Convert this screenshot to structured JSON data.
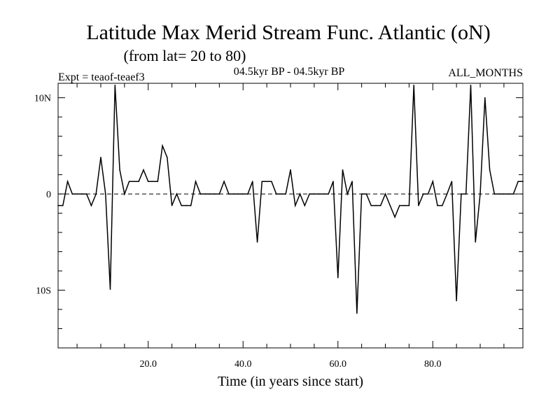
{
  "chart_data": {
    "type": "line",
    "title": "Latitude Max Merid Stream Func. Atlantic (oN)",
    "subtitle": "(from lat= 20 to 80)",
    "experiment": "Expt = teaof-teaef3",
    "period": "04.5kyr BP - 04.5kyr BP",
    "season": "ALL_MONTHS",
    "xlabel": "Time (in years since start)",
    "ylabel": "",
    "xlim": [
      1,
      99
    ],
    "ylim": [
      -16,
      11.5
    ],
    "x_ticks": [
      20,
      40,
      60,
      80
    ],
    "x_tick_labels": [
      "20.0",
      "40.0",
      "60.0",
      "80.0"
    ],
    "y_ticks": [
      10,
      0,
      -10
    ],
    "y_tick_labels": [
      "10N",
      "0",
      "10S"
    ],
    "zero_line": "dashed",
    "grid": false,
    "series": [
      {
        "name": "Latitude Max Merid Stream Func.",
        "x": [
          1,
          2,
          3,
          4,
          5,
          6,
          7,
          8,
          9,
          10,
          11,
          12,
          13,
          14,
          15,
          16,
          17,
          18,
          19,
          20,
          21,
          22,
          23,
          24,
          25,
          26,
          27,
          28,
          29,
          30,
          31,
          32,
          33,
          34,
          35,
          36,
          37,
          38,
          39,
          40,
          41,
          42,
          43,
          44,
          45,
          46,
          47,
          48,
          49,
          50,
          51,
          52,
          53,
          54,
          55,
          56,
          57,
          58,
          59,
          60,
          61,
          62,
          63,
          64,
          65,
          66,
          67,
          68,
          69,
          70,
          71,
          72,
          73,
          74,
          75,
          76,
          77,
          78,
          79,
          80,
          81,
          82,
          83,
          84,
          85,
          86,
          87,
          88,
          89,
          90,
          91,
          92,
          93,
          94,
          95,
          96,
          97,
          98,
          99
        ],
        "values": [
          -1.2,
          -1.2,
          1.3,
          0,
          0,
          0,
          0,
          -1.2,
          0,
          3.8,
          0,
          -9.9,
          11.3,
          2.5,
          0,
          1.3,
          1.3,
          1.3,
          2.5,
          1.3,
          1.3,
          1.3,
          5.0,
          3.8,
          -1.2,
          0,
          -1.2,
          -1.2,
          -1.2,
          1.3,
          0,
          0,
          0,
          0,
          0,
          1.3,
          0,
          0,
          0,
          0,
          0,
          1.3,
          -5.0,
          1.3,
          1.3,
          1.3,
          0,
          0,
          0,
          2.5,
          -1.2,
          0,
          -1.2,
          0,
          0,
          0,
          0,
          0,
          1.3,
          -8.7,
          2.5,
          0,
          1.3,
          -12.4,
          0,
          0,
          -1.2,
          -1.2,
          -1.2,
          0,
          -1.2,
          -2.4,
          -1.2,
          -1.2,
          -1.2,
          11.3,
          -1.2,
          0,
          0,
          1.3,
          -1.2,
          -1.2,
          0,
          1.3,
          -11.1,
          0,
          0,
          11.3,
          -5.0,
          0,
          10.0,
          2.5,
          0,
          0,
          0,
          0,
          0,
          1.3,
          1.3
        ]
      }
    ]
  }
}
